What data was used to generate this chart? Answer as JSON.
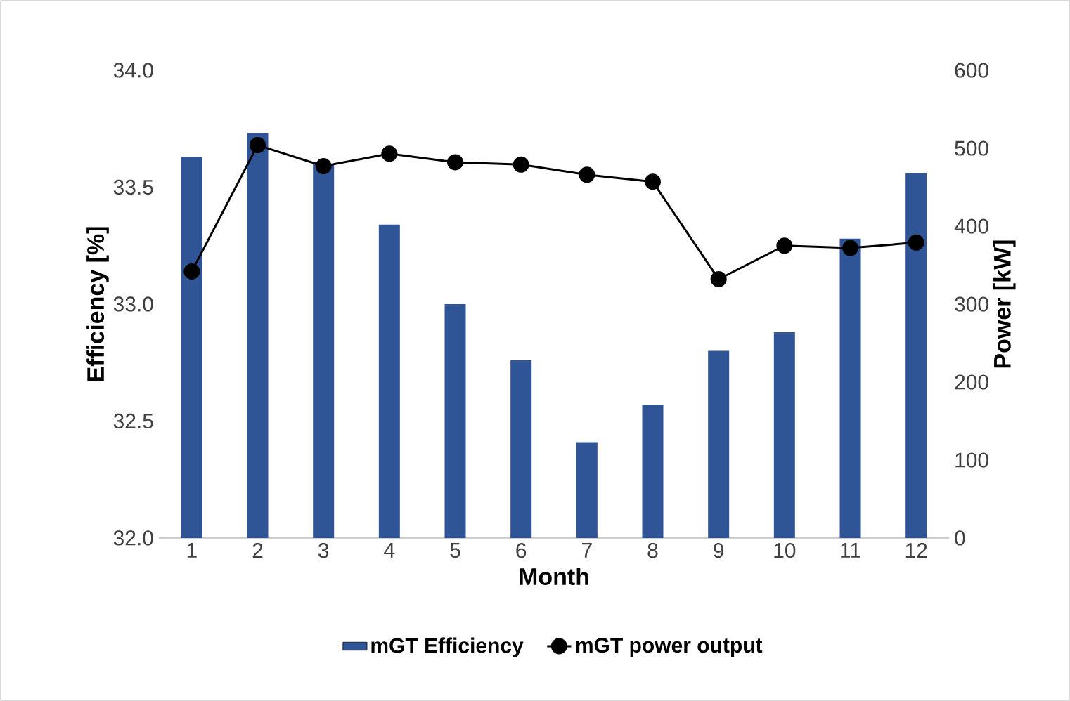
{
  "chart_data": {
    "type": "bar",
    "categories": [
      "1",
      "2",
      "3",
      "4",
      "5",
      "6",
      "7",
      "8",
      "9",
      "10",
      "11",
      "12"
    ],
    "xlabel": "Month",
    "ylabel": "Efficiency [%]",
    "y2label": "Power [kW]",
    "series": [
      {
        "name": "mGT Efficiency",
        "color": "#2f5597",
        "values": [
          33.63,
          33.73,
          33.6,
          33.34,
          33.0,
          32.76,
          32.41,
          32.57,
          32.8,
          32.88,
          33.28,
          33.56
        ]
      },
      {
        "name": "mGT power output",
        "type": "line",
        "axis": "y2",
        "color": "#000000",
        "marker": "circle",
        "values": [
          342,
          504,
          477,
          493,
          482,
          479,
          466,
          457,
          332,
          375,
          372,
          379
        ]
      }
    ],
    "ylim": [
      32,
      34
    ],
    "yticks": [
      {
        "value": 32,
        "label": "32.0"
      },
      32.5,
      {
        "value": 33,
        "label": "33.0"
      },
      33.5,
      {
        "value": 34,
        "label": "34.0"
      }
    ],
    "y2lim": [
      0,
      600
    ],
    "y2ticks": [
      0,
      100,
      200,
      300,
      400,
      500,
      600
    ],
    "legend": "bottom",
    "grid": false
  }
}
